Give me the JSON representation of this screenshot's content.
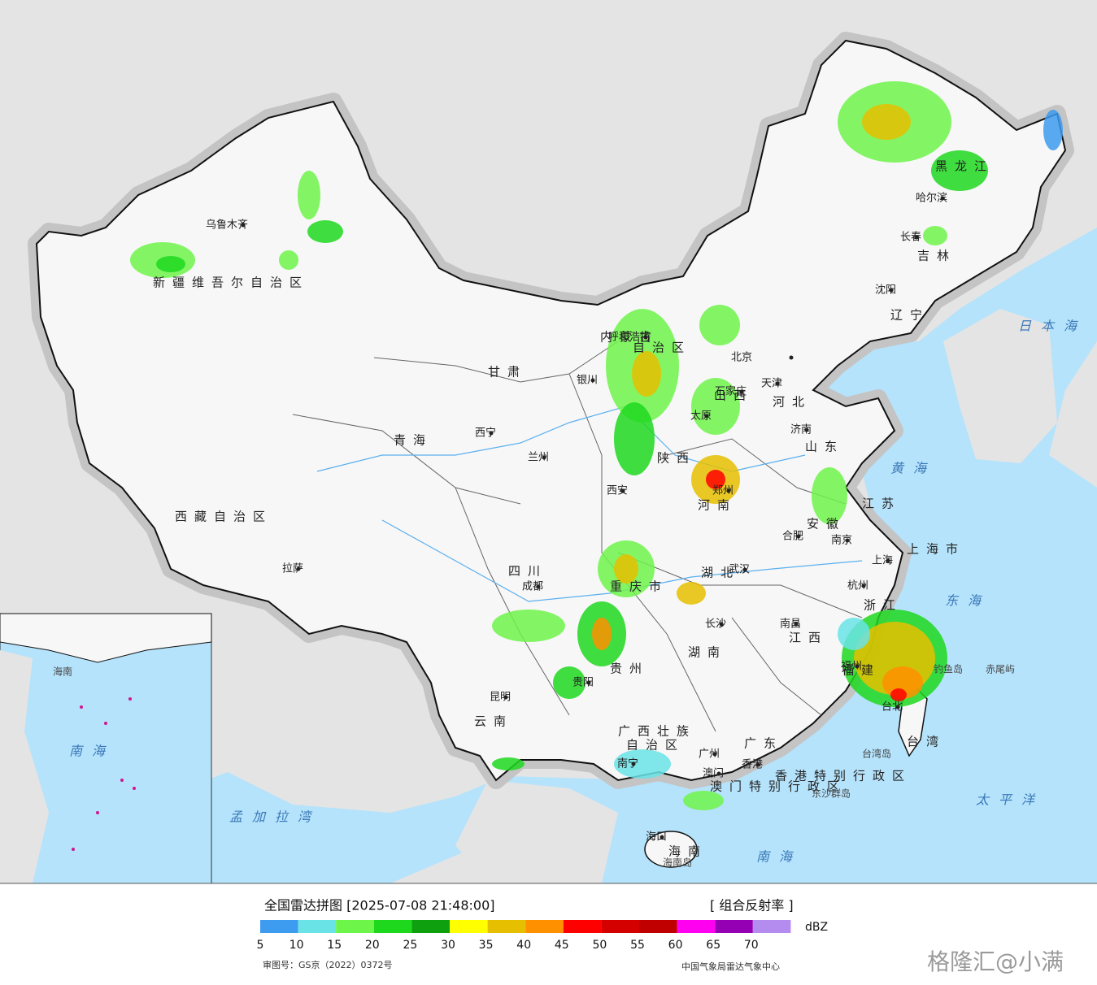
{
  "header": {
    "title": "全国雷达拼图 [2025-07-08 21:48:00]",
    "product": "[ 组合反射率 ]"
  },
  "legend": {
    "unit": "dBZ",
    "ticks": [
      5,
      10,
      15,
      20,
      25,
      30,
      35,
      40,
      45,
      50,
      55,
      60,
      65,
      70
    ],
    "colors": [
      "#3d9bf0",
      "#6ae3e6",
      "#6ef54a",
      "#1ed81e",
      "#0ea00e",
      "#ffff00",
      "#e6c000",
      "#ff9000",
      "#ff0000",
      "#d40000",
      "#c00000",
      "#ff00f0",
      "#9600b4",
      "#b48cf0"
    ]
  },
  "map": {
    "cities": [
      "乌鲁木齐",
      "拉萨",
      "西宁",
      "兰州",
      "银川",
      "成都",
      "昆明",
      "贵阳",
      "南宁",
      "西安",
      "郑州",
      "武汉",
      "长沙",
      "南昌",
      "福州",
      "台北",
      "杭州",
      "上海",
      "南京",
      "合肥",
      "济南",
      "天津",
      "北京",
      "石家庄",
      "太原",
      "呼和浩特",
      "沈阳",
      "长春",
      "哈尔滨",
      "广州",
      "香港",
      "澳门",
      "海口"
    ],
    "regions": [
      "新疆维吾尔自治区",
      "西藏自治区",
      "青海",
      "甘肃",
      "四川",
      "云南",
      "贵州",
      "广西壮族",
      "自治区",
      "广东",
      "海南",
      "湖南",
      "湖北",
      "江西",
      "福建",
      "浙江",
      "安徽",
      "江苏",
      "山东",
      "河南",
      "河北",
      "山西",
      "陕西",
      "内蒙古",
      "自治区",
      "辽宁",
      "吉林",
      "黑龙江",
      "重庆市",
      "上海市",
      "台湾",
      "香港特别行政区",
      "澳门特别行政区"
    ],
    "seas": [
      "日本海",
      "黄海",
      "东海",
      "南海",
      "太平洋",
      "孟加拉湾"
    ],
    "islands": [
      "钓鱼岛",
      "赤尾屿",
      "台湾岛",
      "东沙群岛",
      "海南岛"
    ],
    "inset": [
      "南海",
      "海南"
    ]
  },
  "footer": {
    "approval": "审图号：GS京（2022）0372号",
    "agency": "中国气象局雷达气象中心",
    "watermark": "格隆汇@小满"
  }
}
